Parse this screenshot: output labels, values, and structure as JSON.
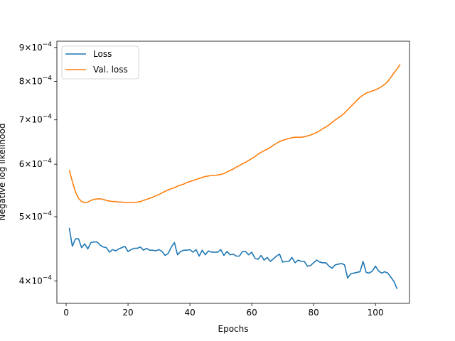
{
  "chart_data": {
    "type": "line",
    "xlabel": "Epochs",
    "ylabel": "Negative log likelihood",
    "xlim": [
      -3,
      111
    ],
    "ylim": [
      0.00037,
      0.00092
    ],
    "yscale": "log",
    "grid": false,
    "legend_position": "top-left",
    "x_ticks": [
      {
        "value": 0,
        "label": "0"
      },
      {
        "value": 20,
        "label": "20"
      },
      {
        "value": 40,
        "label": "40"
      },
      {
        "value": 60,
        "label": "60"
      },
      {
        "value": 80,
        "label": "80"
      },
      {
        "value": 100,
        "label": "100"
      }
    ],
    "y_ticks": [
      {
        "value": 0.0004,
        "mant": "4",
        "exp": "−4"
      },
      {
        "value": 0.0005,
        "mant": "5",
        "exp": "−4"
      },
      {
        "value": 0.0006,
        "mant": "6",
        "exp": "−4"
      },
      {
        "value": 0.0007,
        "mant": "7",
        "exp": "−4"
      },
      {
        "value": 0.0008,
        "mant": "8",
        "exp": "−4"
      },
      {
        "value": 0.0009,
        "mant": "9",
        "exp": "−4"
      }
    ],
    "series": [
      {
        "name": "Loss",
        "color": "#1f77b4",
        "x_start": 1,
        "x_step": 1,
        "values": [
          0.000481,
          0.000451,
          0.000463,
          0.000463,
          0.000449,
          0.000455,
          0.000447,
          0.000457,
          0.000458,
          0.000458,
          0.000453,
          0.00045,
          0.000449,
          0.000442,
          0.000446,
          0.000444,
          0.000447,
          0.000449,
          0.000451,
          0.000443,
          0.000446,
          0.000448,
          0.000448,
          0.00045,
          0.000445,
          0.000448,
          0.000445,
          0.000445,
          0.000444,
          0.000446,
          0.000443,
          0.000437,
          0.00044,
          0.00045,
          0.000457,
          0.000438,
          0.000443,
          0.000445,
          0.000445,
          0.000446,
          0.000442,
          0.000446,
          0.000436,
          0.000445,
          0.000438,
          0.000444,
          0.000442,
          0.000442,
          0.000442,
          0.000446,
          0.000437,
          0.000443,
          0.000438,
          0.000439,
          0.000436,
          0.000436,
          0.000443,
          0.000443,
          0.000438,
          0.000442,
          0.000433,
          0.000431,
          0.000437,
          0.00043,
          0.000434,
          0.000428,
          0.000432,
          0.000436,
          0.000439,
          0.000427,
          0.000428,
          0.000428,
          0.000434,
          0.000426,
          0.00043,
          0.000428,
          0.000428,
          0.000421,
          0.000422,
          0.000426,
          0.00043,
          0.000427,
          0.000426,
          0.000426,
          0.000421,
          0.000418,
          0.000423,
          0.000424,
          0.000425,
          0.000423,
          0.000404,
          0.00041,
          0.000411,
          0.000412,
          0.000413,
          0.000428,
          0.000412,
          0.000411,
          0.000414,
          0.000421,
          0.000414,
          0.000411,
          0.000413,
          0.000411,
          0.000405,
          0.000399,
          0.000389
        ]
      },
      {
        "name": "Val. loss",
        "color": "#ff7f0e",
        "x_start": 1,
        "x_step": 1,
        "values": [
          0.000588,
          0.000565,
          0.000545,
          0.000533,
          0.000527,
          0.000525,
          0.000526,
          0.000529,
          0.000531,
          0.000532,
          0.000532,
          0.000531,
          0.000529,
          0.000528,
          0.000527,
          0.000527,
          0.000526,
          0.000526,
          0.000525,
          0.000525,
          0.000525,
          0.000525,
          0.000526,
          0.000527,
          0.000529,
          0.000531,
          0.000533,
          0.000535,
          0.000538,
          0.00054,
          0.000543,
          0.000546,
          0.000549,
          0.000551,
          0.000553,
          0.000556,
          0.000558,
          0.00056,
          0.000563,
          0.000565,
          0.000567,
          0.000569,
          0.000571,
          0.000573,
          0.000575,
          0.000576,
          0.000577,
          0.000577,
          0.000578,
          0.000579,
          0.000581,
          0.000584,
          0.000587,
          0.00059,
          0.000594,
          0.000597,
          0.000601,
          0.000604,
          0.000608,
          0.000612,
          0.000616,
          0.000621,
          0.000625,
          0.000629,
          0.000632,
          0.000636,
          0.000641,
          0.000645,
          0.000649,
          0.000652,
          0.000654,
          0.000656,
          0.000658,
          0.000659,
          0.000659,
          0.000659,
          0.00066,
          0.000662,
          0.000664,
          0.000667,
          0.00067,
          0.000674,
          0.000679,
          0.000683,
          0.000688,
          0.000694,
          0.0007,
          0.000705,
          0.00071,
          0.000717,
          0.000725,
          0.000733,
          0.000741,
          0.000749,
          0.000757,
          0.000763,
          0.000768,
          0.000771,
          0.000774,
          0.000777,
          0.000781,
          0.000786,
          0.000792,
          0.0008,
          0.000812,
          0.000824,
          0.000836,
          0.000849
        ]
      }
    ]
  }
}
